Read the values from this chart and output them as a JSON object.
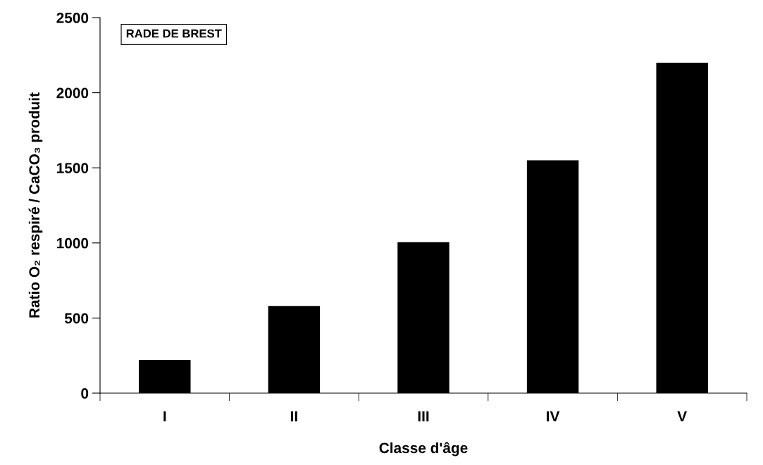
{
  "chart_data": {
    "type": "bar",
    "xlabel": "Classe d'âge",
    "ylabel": "Ratio O₂ respiré / CaCO₃ produit",
    "categories": [
      "I",
      "II",
      "III",
      "IV",
      "V"
    ],
    "values": [
      220,
      580,
      1005,
      1550,
      2200
    ],
    "color": "#000000",
    "ylim": [
      0,
      2500
    ],
    "yticks": [
      0,
      500,
      1000,
      1500,
      2000,
      2500
    ],
    "grid": false,
    "legend": false,
    "annotations": [
      "RADE DE BREST"
    ]
  }
}
